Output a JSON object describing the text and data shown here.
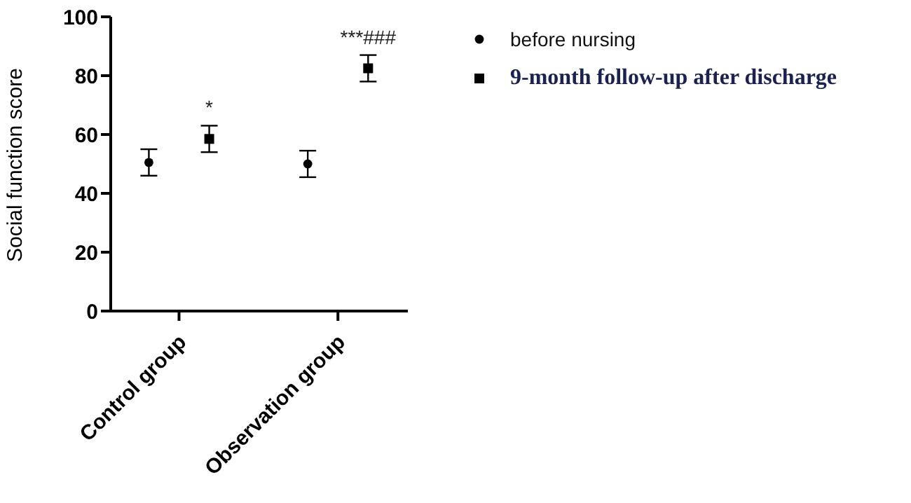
{
  "chart_data": {
    "type": "scatter",
    "ylabel": "Social function score",
    "categories": [
      "Control group",
      "Observation group"
    ],
    "series": [
      {
        "name": "before nursing",
        "color": "#000000",
        "marker": "circle",
        "values": [
          50.5,
          50
        ],
        "errors": [
          4.5,
          4.5
        ]
      },
      {
        "name": "9-month follow-up after discharge",
        "color": "#000000",
        "marker": "square",
        "values": [
          58.5,
          82.5
        ],
        "errors": [
          4.5,
          4.5
        ]
      }
    ],
    "ylim": [
      0,
      100
    ],
    "yticks": [
      0,
      20,
      40,
      60,
      80,
      100
    ],
    "grid": false,
    "legend": "top right",
    "annotations": [
      "*",
      "***###"
    ]
  }
}
